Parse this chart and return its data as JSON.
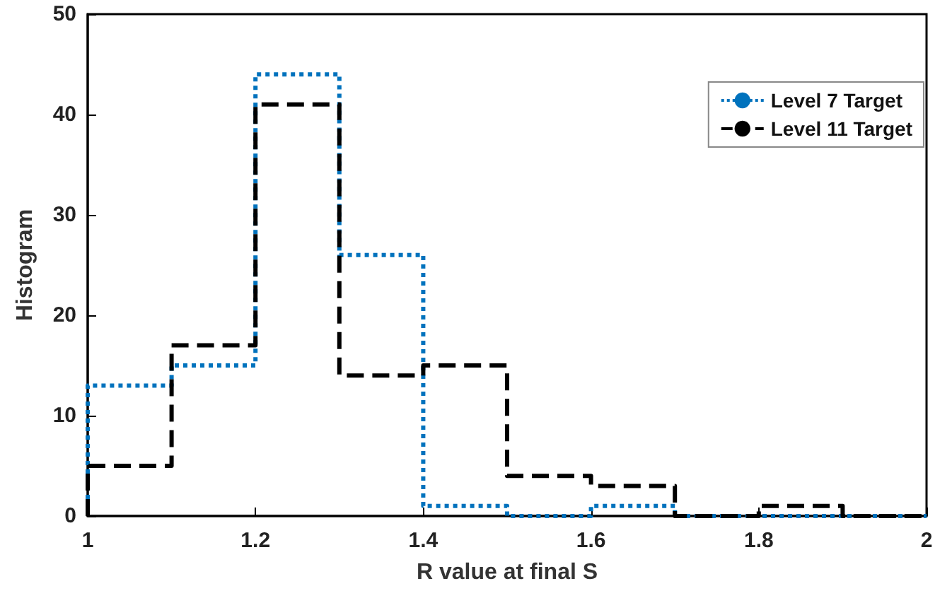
{
  "chart_data": {
    "type": "histogram",
    "xlabel": "R value at final S",
    "ylabel": "Histogram",
    "bins": [
      1,
      1.1,
      1.2,
      1.3,
      1.4,
      1.5,
      1.6,
      1.7,
      1.8,
      1.9,
      2
    ],
    "series": [
      {
        "name": "Level 7 Target",
        "color": "#0072bd",
        "line_style": "dotted",
        "values": [
          13,
          15,
          44,
          26,
          1,
          0,
          1,
          0,
          0,
          0
        ]
      },
      {
        "name": "Level 11 Target",
        "color": "#000000",
        "line_style": "dashed",
        "values": [
          5,
          17,
          41,
          14,
          15,
          4,
          3,
          0,
          1,
          0
        ]
      }
    ],
    "xlim": [
      1,
      2
    ],
    "xticks": [
      1,
      1.2,
      1.4,
      1.6,
      1.8,
      2
    ],
    "ylim": [
      0,
      50
    ],
    "yticks": [
      0,
      10,
      20,
      30,
      40,
      50
    ],
    "grid": false,
    "legend": "top right"
  }
}
